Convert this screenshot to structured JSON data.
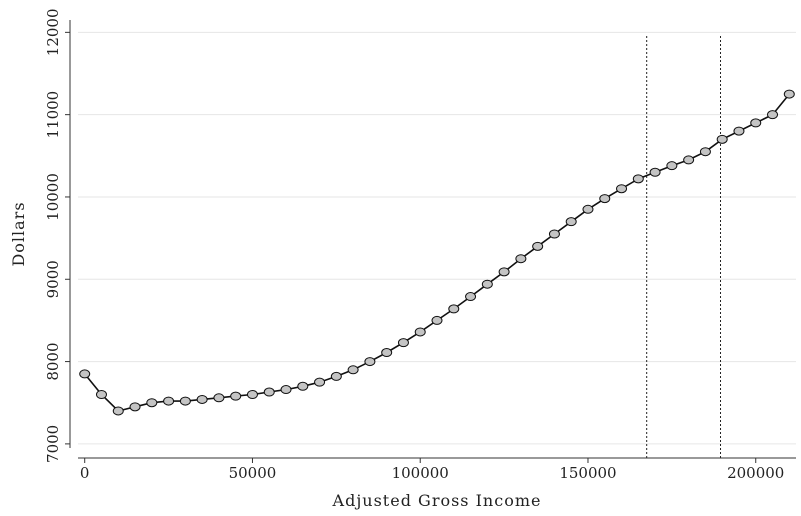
{
  "chart_data": {
    "type": "line",
    "title": "",
    "xlabel": "Adjusted Gross Income",
    "ylabel": "Dollars",
    "xlim": [
      -2000,
      212000
    ],
    "ylim": [
      6950,
      12150
    ],
    "x_ticks": [
      0,
      50000,
      100000,
      150000,
      200000
    ],
    "y_ticks": [
      7000,
      8000,
      9000,
      10000,
      11000,
      12000
    ],
    "grid": true,
    "markers": true,
    "reference_lines_x": [
      167500,
      189500
    ],
    "series": [
      {
        "x": [
          0,
          5000,
          10000,
          15000,
          20000,
          25000,
          30000,
          35000,
          40000,
          45000,
          50000,
          55000,
          60000,
          65000,
          70000,
          75000,
          80000,
          85000,
          90000,
          95000,
          100000,
          105000,
          110000,
          115000,
          120000,
          125000,
          130000,
          135000,
          140000,
          145000,
          150000,
          155000,
          160000,
          165000,
          170000,
          175000,
          180000,
          185000,
          190000,
          195000,
          200000,
          205000,
          210000
        ],
        "y": [
          7850,
          7600,
          7400,
          7450,
          7500,
          7520,
          7520,
          7540,
          7560,
          7580,
          7600,
          7630,
          7660,
          7700,
          7750,
          7820,
          7900,
          8000,
          8110,
          8230,
          8360,
          8500,
          8640,
          8790,
          8940,
          9090,
          9250,
          9400,
          9550,
          9700,
          9850,
          9980,
          10100,
          10220,
          10300,
          10380,
          10450,
          10550,
          10700,
          10800,
          10900,
          11000,
          11250
        ]
      }
    ]
  }
}
